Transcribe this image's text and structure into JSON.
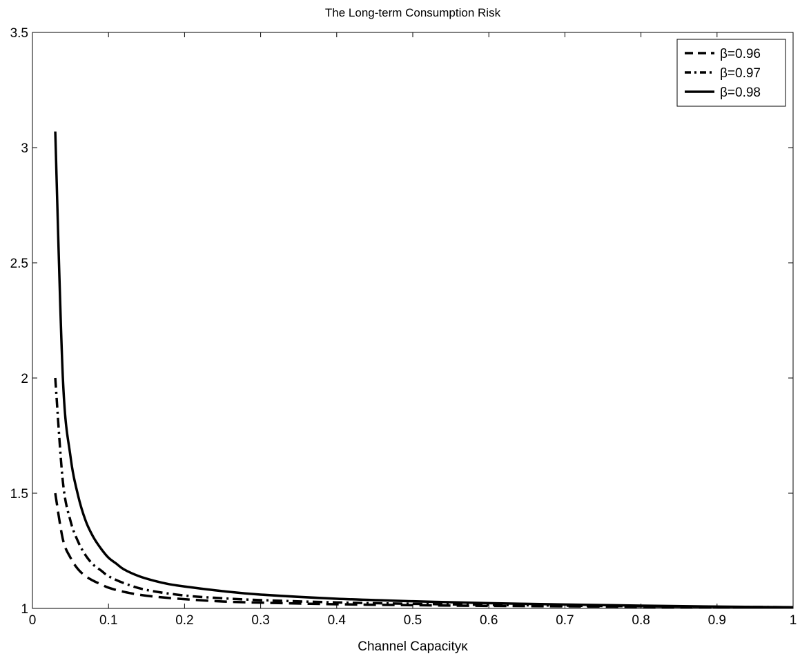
{
  "chart_data": {
    "type": "line",
    "title": "The Long-term Consumption Risk",
    "xlabel": "Channel Capacityκ",
    "ylabel": "",
    "xlim": [
      0,
      1
    ],
    "ylim": [
      1,
      3.5
    ],
    "xticks": [
      0,
      0.1,
      0.2,
      0.3,
      0.4,
      0.5,
      0.6,
      0.7,
      0.8,
      0.9,
      1
    ],
    "xtick_labels": [
      "0",
      "0.1",
      "0.2",
      "0.3",
      "0.4",
      "0.5",
      "0.6",
      "0.7",
      "0.8",
      "0.9",
      "1"
    ],
    "yticks": [
      1,
      1.5,
      2,
      2.5,
      3,
      3.5
    ],
    "ytick_labels": [
      "1",
      "1.5",
      "2",
      "2.5",
      "3",
      "3.5"
    ],
    "grid": false,
    "legend_position": "top-right",
    "series": [
      {
        "name": "β=0.96",
        "style": "dashed",
        "color": "#000000",
        "x": [
          0.03,
          0.04,
          0.05,
          0.06,
          0.07,
          0.08,
          0.09,
          0.1,
          0.12,
          0.15,
          0.2,
          0.25,
          0.3,
          0.4,
          0.5,
          0.6,
          0.7,
          0.8,
          0.9,
          1.0
        ],
        "values": [
          1.5,
          1.3,
          1.22,
          1.17,
          1.14,
          1.12,
          1.105,
          1.09,
          1.072,
          1.055,
          1.04,
          1.03,
          1.025,
          1.018,
          1.014,
          1.011,
          1.009,
          1.007,
          1.005,
          1.004
        ]
      },
      {
        "name": "β=0.97",
        "style": "dashdot",
        "color": "#000000",
        "x": [
          0.03,
          0.04,
          0.05,
          0.06,
          0.07,
          0.08,
          0.09,
          0.1,
          0.12,
          0.15,
          0.2,
          0.25,
          0.3,
          0.4,
          0.5,
          0.6,
          0.7,
          0.8,
          0.9,
          1.0
        ],
        "values": [
          2.0,
          1.55,
          1.38,
          1.29,
          1.23,
          1.19,
          1.165,
          1.14,
          1.11,
          1.08,
          1.056,
          1.044,
          1.036,
          1.026,
          1.02,
          1.015,
          1.012,
          1.009,
          1.007,
          1.005
        ]
      },
      {
        "name": "β=0.98",
        "style": "solid",
        "color": "#000000",
        "x": [
          0.03,
          0.04,
          0.05,
          0.06,
          0.07,
          0.08,
          0.09,
          0.1,
          0.11,
          0.12,
          0.14,
          0.16,
          0.18,
          0.2,
          0.25,
          0.3,
          0.4,
          0.5,
          0.6,
          0.7,
          0.8,
          0.9,
          1.0
        ],
        "values": [
          3.07,
          2.0,
          1.66,
          1.49,
          1.38,
          1.31,
          1.26,
          1.22,
          1.195,
          1.17,
          1.14,
          1.12,
          1.105,
          1.095,
          1.075,
          1.06,
          1.042,
          1.031,
          1.023,
          1.017,
          1.012,
          1.008,
          1.005
        ]
      }
    ]
  }
}
